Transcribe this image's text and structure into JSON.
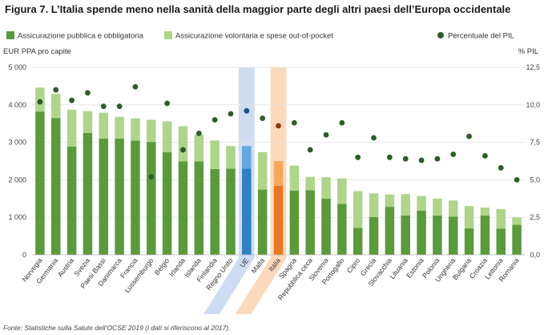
{
  "chart_data": {
    "type": "bar",
    "title": "Figura 7. L’Italia spende meno nella sanità della maggior parte degli altri paesi dell’Europa occidentale",
    "ylabel_left": "EUR PPA pro capite",
    "ylabel_right": "% PIL",
    "ylim_left": [
      0,
      5000
    ],
    "ylim_right": [
      0,
      12.5
    ],
    "yticks_left": [
      "0",
      "1 000",
      "2 000",
      "3 000",
      "4 000",
      "5 000"
    ],
    "yticks_right": [
      "0,0",
      "2,5",
      "5,0",
      "7,5",
      "10,0",
      "12,5"
    ],
    "legend": [
      "Assicurazione pubblica e obbligatoria",
      "Assicurazione volontaria e spese out-of-pocket",
      "Percentuale del PIL"
    ],
    "legend_position": "top",
    "stacked": true,
    "categories": [
      "Norvegia",
      "Germania",
      "Austria",
      "Svezia",
      "Paesi Bassi",
      "Danimarca",
      "Francia",
      "Lussemburgo",
      "Belgio",
      "Irlanda",
      "Islanda",
      "Finlandia",
      "Regno Unito",
      "UE",
      "Malta",
      "Italia",
      "Spagna",
      "Repubblica ceca",
      "Slovenia",
      "Portogallo",
      "Cipro",
      "Grecia",
      "Slovacchia",
      "Lituania",
      "Estonia",
      "Polonia",
      "Ungheria",
      "Bulgaria",
      "Croazia",
      "Lettonia",
      "Romania"
    ],
    "highlight": [
      "UE",
      "Italia"
    ],
    "colors": {
      "public": "#5a9a3c",
      "voluntary": "#aed58a",
      "dot": "#2e5d2a",
      "eu_public": "#2e7fc4",
      "eu_voluntary": "#63a8e0",
      "eu_band": "#c5d6ee",
      "it_public": "#e87722",
      "it_voluntary": "#f7a85c",
      "it_band": "#fbd2b0"
    },
    "series": [
      {
        "name": "Assicurazione pubblica e obbligatoria",
        "values": [
          3820,
          3650,
          2890,
          3250,
          3100,
          3100,
          3050,
          3010,
          2740,
          2490,
          2490,
          2290,
          2300,
          2300,
          1740,
          1840,
          1710,
          1720,
          1500,
          1360,
          720,
          1010,
          1280,
          1050,
          1180,
          1050,
          1020,
          710,
          1050,
          700,
          800
        ]
      },
      {
        "name": "Assicurazione volontaria e spese out-of-pocket",
        "values": [
          640,
          640,
          980,
          580,
          690,
          580,
          590,
          590,
          820,
          940,
          720,
          760,
          600,
          600,
          1000,
          660,
          670,
          360,
          570,
          680,
          980,
          630,
          330,
          570,
          390,
          450,
          430,
          590,
          210,
          520,
          200
        ]
      },
      {
        "name": "Percentuale del PIL",
        "axis": "right",
        "values": [
          10.2,
          11.0,
          10.3,
          10.8,
          9.9,
          9.9,
          11.2,
          5.2,
          10.1,
          7.0,
          8.1,
          9.0,
          9.4,
          9.6,
          9.1,
          8.6,
          8.8,
          7.0,
          8.0,
          8.8,
          6.5,
          7.8,
          6.5,
          6.4,
          6.3,
          6.4,
          6.7,
          7.9,
          6.6,
          5.8,
          5.0
        ]
      }
    ],
    "source": "Fonte: Statistiche sulla Salute dell’OCSE 2019 (i dati si riferiscono al 2017)."
  }
}
